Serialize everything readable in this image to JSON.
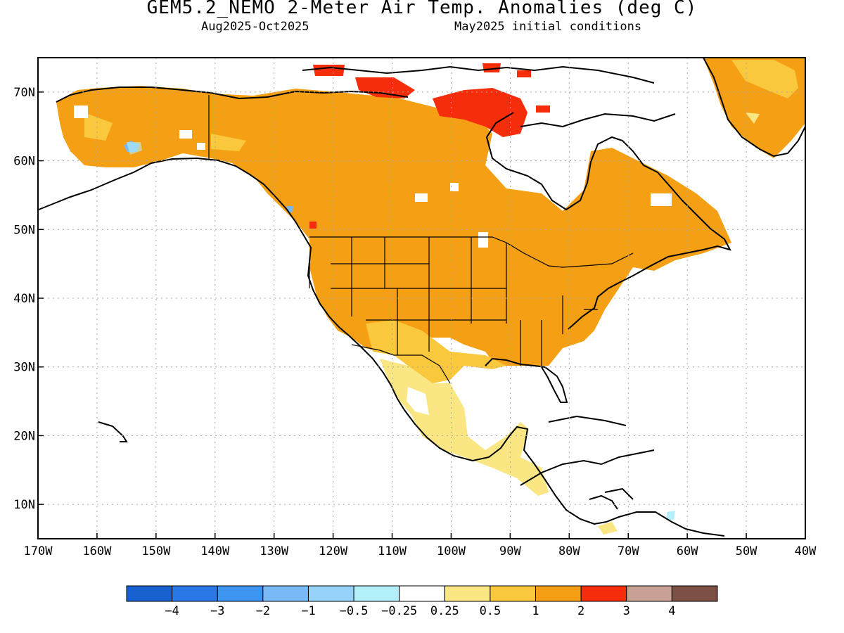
{
  "title": "GEM5.2_NEMO 2-Meter Air Temp. Anomalies (deg C)",
  "subtitle_left": "Aug2025-Oct2025",
  "subtitle_right": "May2025 initial conditions",
  "map": {
    "lat_labels": [
      "70N",
      "60N",
      "50N",
      "40N",
      "30N",
      "20N",
      "10N"
    ],
    "lon_labels": [
      "170W",
      "160W",
      "150W",
      "140W",
      "130W",
      "120W",
      "110W",
      "100W",
      "90W",
      "80W",
      "70W",
      "60W",
      "50W",
      "40W"
    ],
    "extent": {
      "lon": [
        -170,
        -40
      ],
      "lat": [
        5,
        75
      ]
    },
    "grid": "dotted"
  },
  "colorbar": {
    "colors": [
      "#1960d0",
      "#2a78e8",
      "#3c96f0",
      "#78b9f6",
      "#96d2fa",
      "#b4f0fa",
      "#ffffff",
      "#fae682",
      "#fac83c",
      "#f5a014",
      "#f52d0a",
      "#c8a096",
      "#7d5046"
    ],
    "labels": [
      "-4",
      "-3",
      "-2",
      "-1",
      "-0.5",
      "-0.25",
      "0.25",
      "0.5",
      "1",
      "2",
      "3",
      "4"
    ]
  }
}
